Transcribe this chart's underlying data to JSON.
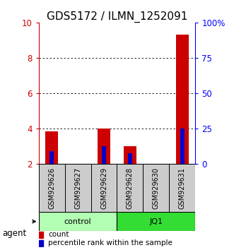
{
  "title": "GDS5172 / ILMN_1252091",
  "samples": [
    "GSM929626",
    "GSM929627",
    "GSM929629",
    "GSM929628",
    "GSM929630",
    "GSM929631"
  ],
  "count_values": [
    3.85,
    2.0,
    4.0,
    3.0,
    2.0,
    9.3
  ],
  "percentile_values": [
    2.7,
    2.0,
    3.0,
    2.6,
    2.0,
    4.0
  ],
  "ymin": 2.0,
  "ymax": 10.0,
  "yticks": [
    2,
    4,
    6,
    8,
    10
  ],
  "yticklabels_left": [
    "2",
    "4",
    "6",
    "8",
    "10"
  ],
  "right_yticks": [
    0,
    25,
    50,
    75,
    100
  ],
  "right_yticklabels": [
    "0",
    "25",
    "50",
    "75",
    "100%"
  ],
  "groups": [
    {
      "label": "control",
      "indices": [
        0,
        1,
        2
      ],
      "color": "#b3ffb3"
    },
    {
      "label": "JQ1",
      "indices": [
        3,
        4,
        5
      ],
      "color": "#33dd33"
    }
  ],
  "group_label": "agent",
  "bar_color_red": "#cc0000",
  "bar_color_blue": "#0000cc",
  "bar_width": 0.5,
  "legend_count": "count",
  "legend_percentile": "percentile rank within the sample",
  "bg_color_samples": "#cccccc",
  "title_fontsize": 11,
  "tick_fontsize": 8.5,
  "sample_fontsize": 7,
  "group_fontsize": 8,
  "legend_fontsize": 7.5,
  "agent_fontsize": 8.5
}
